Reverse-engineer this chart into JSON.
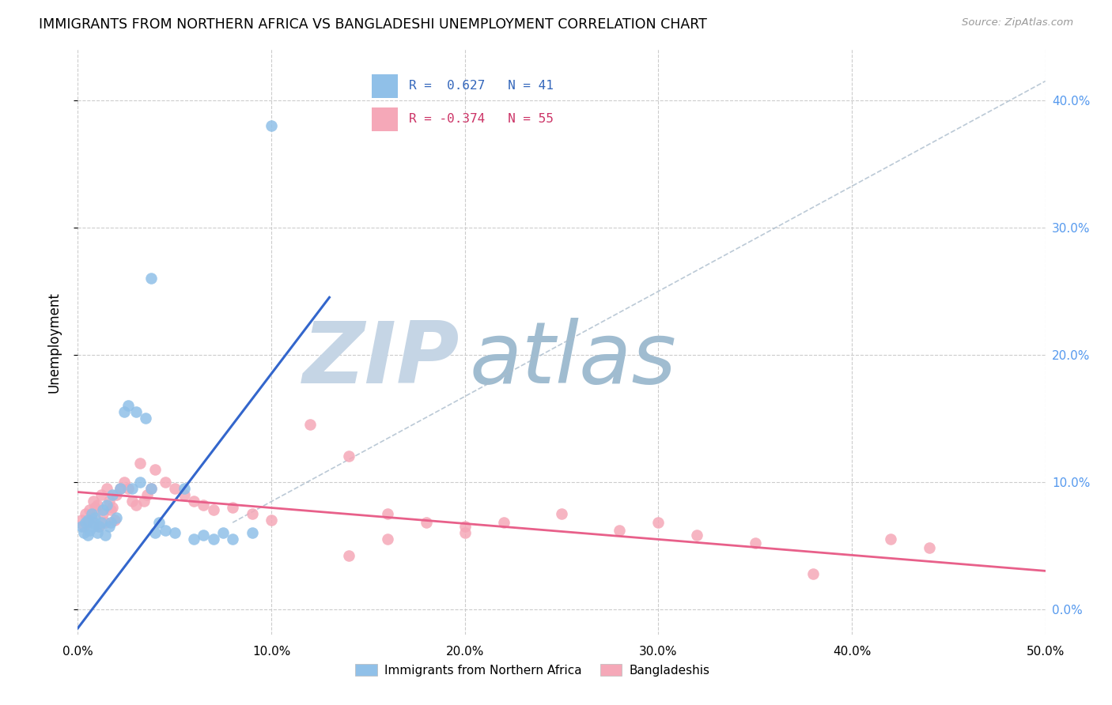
{
  "title": "IMMIGRANTS FROM NORTHERN AFRICA VS BANGLADESHI UNEMPLOYMENT CORRELATION CHART",
  "source": "Source: ZipAtlas.com",
  "ylabel": "Unemployment",
  "xlim": [
    0.0,
    0.5
  ],
  "ylim": [
    -0.02,
    0.44
  ],
  "xticks": [
    0.0,
    0.1,
    0.2,
    0.3,
    0.4,
    0.5
  ],
  "xtick_labels": [
    "0.0%",
    "10.0%",
    "20.0%",
    "30.0%",
    "40.0%",
    "50.0%"
  ],
  "yticks_right": [
    0.0,
    0.1,
    0.2,
    0.3,
    0.4
  ],
  "ytick_labels_right": [
    "0.0%",
    "10.0%",
    "20.0%",
    "30.0%",
    "40.0%"
  ],
  "blue_color": "#90c0e8",
  "pink_color": "#f5a8b8",
  "blue_line_color": "#3366cc",
  "pink_line_color": "#e8608a",
  "diag_color": "#aabccc",
  "R_blue": 0.627,
  "N_blue": 41,
  "R_pink": -0.374,
  "N_pink": 55,
  "blue_scatter_x": [
    0.002,
    0.003,
    0.004,
    0.005,
    0.005,
    0.006,
    0.007,
    0.008,
    0.008,
    0.009,
    0.01,
    0.011,
    0.012,
    0.013,
    0.014,
    0.015,
    0.016,
    0.017,
    0.018,
    0.02,
    0.022,
    0.024,
    0.026,
    0.028,
    0.03,
    0.032,
    0.035,
    0.038,
    0.04,
    0.042,
    0.045,
    0.05,
    0.055,
    0.06,
    0.065,
    0.07,
    0.075,
    0.08,
    0.09,
    0.1,
    0.038
  ],
  "blue_scatter_y": [
    0.065,
    0.06,
    0.068,
    0.07,
    0.058,
    0.062,
    0.075,
    0.065,
    0.068,
    0.072,
    0.06,
    0.065,
    0.068,
    0.078,
    0.058,
    0.082,
    0.065,
    0.068,
    0.09,
    0.072,
    0.095,
    0.155,
    0.16,
    0.095,
    0.155,
    0.1,
    0.15,
    0.095,
    0.06,
    0.068,
    0.062,
    0.06,
    0.095,
    0.055,
    0.058,
    0.055,
    0.06,
    0.055,
    0.06,
    0.38,
    0.26
  ],
  "pink_scatter_x": [
    0.002,
    0.003,
    0.004,
    0.005,
    0.006,
    0.007,
    0.008,
    0.009,
    0.01,
    0.011,
    0.012,
    0.013,
    0.014,
    0.015,
    0.016,
    0.017,
    0.018,
    0.019,
    0.02,
    0.022,
    0.024,
    0.026,
    0.028,
    0.03,
    0.032,
    0.034,
    0.036,
    0.038,
    0.04,
    0.045,
    0.05,
    0.055,
    0.06,
    0.065,
    0.07,
    0.08,
    0.09,
    0.1,
    0.12,
    0.14,
    0.16,
    0.18,
    0.2,
    0.22,
    0.25,
    0.28,
    0.3,
    0.32,
    0.35,
    0.38,
    0.2,
    0.16,
    0.14,
    0.42,
    0.44
  ],
  "pink_scatter_y": [
    0.07,
    0.065,
    0.075,
    0.068,
    0.078,
    0.072,
    0.085,
    0.08,
    0.082,
    0.065,
    0.09,
    0.075,
    0.068,
    0.095,
    0.085,
    0.078,
    0.08,
    0.07,
    0.09,
    0.095,
    0.1,
    0.095,
    0.085,
    0.082,
    0.115,
    0.085,
    0.09,
    0.095,
    0.11,
    0.1,
    0.095,
    0.09,
    0.085,
    0.082,
    0.078,
    0.08,
    0.075,
    0.07,
    0.145,
    0.12,
    0.075,
    0.068,
    0.065,
    0.068,
    0.075,
    0.062,
    0.068,
    0.058,
    0.052,
    0.028,
    0.06,
    0.055,
    0.042,
    0.055,
    0.048
  ],
  "blue_line_x0": 0.0,
  "blue_line_y0": -0.015,
  "blue_line_x1": 0.13,
  "blue_line_y1": 0.245,
  "pink_line_x0": 0.0,
  "pink_line_y0": 0.092,
  "pink_line_x1": 0.5,
  "pink_line_y1": 0.03,
  "diag_line_x0": 0.08,
  "diag_line_y0": 0.068,
  "diag_line_x1": 0.5,
  "diag_line_y1": 0.415,
  "watermark_zip_color": "#c5d5e5",
  "watermark_atlas_color": "#a0bcd0",
  "background_color": "#ffffff",
  "grid_color": "#cccccc",
  "legend_box_color": "#ffffff",
  "legend_border_color": "#cccccc"
}
